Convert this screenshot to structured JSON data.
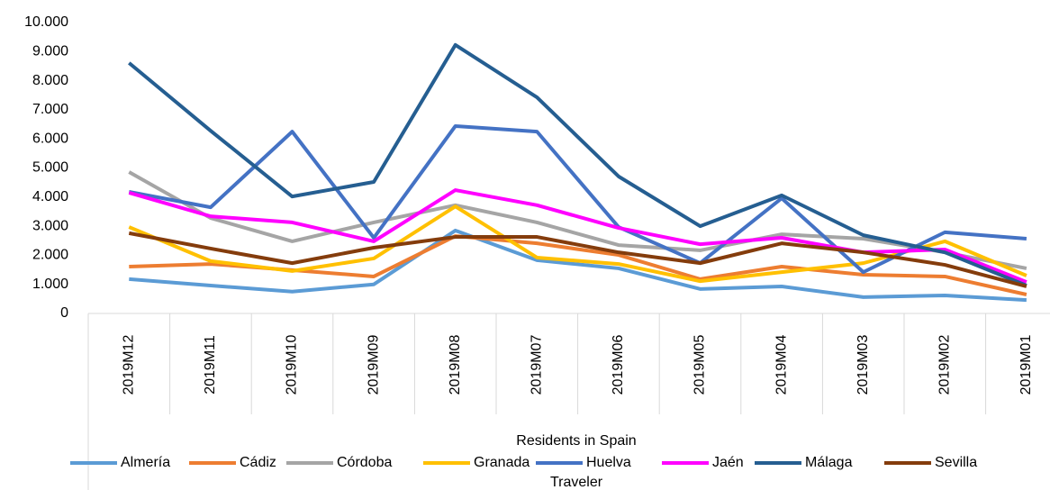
{
  "chart_data": {
    "type": "line",
    "xlabel": "Residents in Spain",
    "legend_title": "Traveler",
    "categories": [
      "2019M12",
      "2019M11",
      "2019M10",
      "2019M09",
      "2019M08",
      "2019M07",
      "2019M06",
      "2019M05",
      "2019M04",
      "2019M03",
      "2019M02",
      "2019M01"
    ],
    "series": [
      {
        "name": "Almería",
        "color": "#5b9bd5",
        "values": [
          1180,
          960,
          750,
          1000,
          2850,
          1830,
          1550,
          840,
          930,
          560,
          620,
          460
        ]
      },
      {
        "name": "Cádiz",
        "color": "#ed7d31",
        "values": [
          1610,
          1700,
          1490,
          1270,
          2660,
          2410,
          2010,
          1180,
          1610,
          1330,
          1270,
          650
        ]
      },
      {
        "name": "Córdoba",
        "color": "#a5a5a5",
        "values": [
          4860,
          3280,
          2480,
          3130,
          3720,
          3130,
          2350,
          2170,
          2720,
          2570,
          2100,
          1550
        ]
      },
      {
        "name": "Granada",
        "color": "#ffc000",
        "values": [
          2970,
          1800,
          1460,
          1890,
          3680,
          1920,
          1700,
          1110,
          1420,
          1730,
          2480,
          1300
        ]
      },
      {
        "name": "Huelva",
        "color": "#4472c4",
        "values": [
          4180,
          3650,
          6250,
          2600,
          6440,
          6250,
          2970,
          1730,
          3960,
          1420,
          2790,
          2570
        ]
      },
      {
        "name": "Jaén",
        "color": "#ff00ff",
        "values": [
          4150,
          3340,
          3130,
          2480,
          4240,
          3720,
          2940,
          2380,
          2600,
          2100,
          2200,
          1080
        ]
      },
      {
        "name": "Málaga",
        "color": "#255e91",
        "values": [
          8610,
          6280,
          4020,
          4520,
          9230,
          7430,
          4710,
          3000,
          4060,
          2690,
          2100,
          960
        ]
      },
      {
        "name": "Sevilla",
        "color": "#843c0c",
        "values": [
          2760,
          2230,
          1730,
          2260,
          2630,
          2630,
          2100,
          1730,
          2410,
          2100,
          1670,
          930
        ]
      }
    ],
    "ylim": [
      0,
      10000
    ],
    "yticks": [
      0,
      {
        "value": 1000,
        "label": "1.000"
      },
      {
        "value": 2000,
        "label": "2.000"
      },
      {
        "value": 3000,
        "label": "3.000"
      },
      {
        "value": 4000,
        "label": "4.000"
      },
      {
        "value": 5000,
        "label": "5.000"
      },
      {
        "value": 6000,
        "label": "6.000"
      },
      {
        "value": 7000,
        "label": "7.000"
      },
      {
        "value": 8000,
        "label": "8.000"
      },
      {
        "value": 9000,
        "label": "9.000"
      },
      {
        "value": 10000,
        "label": "10.000"
      }
    ]
  }
}
